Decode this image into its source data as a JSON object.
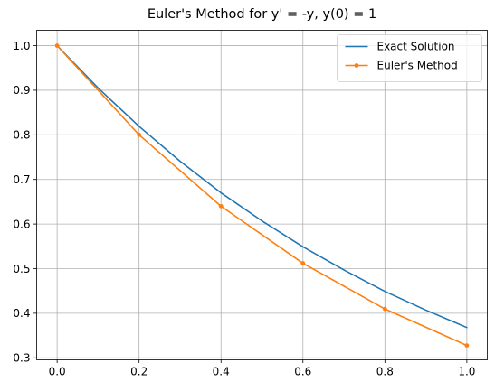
{
  "chart_data": {
    "type": "line",
    "title": "Euler's Method for y' = -y, y(0) = 1",
    "xlabel": "",
    "ylabel": "",
    "xlim": [
      -0.05,
      1.05
    ],
    "ylim": [
      0.2955,
      1.0345
    ],
    "xticks": [
      0.0,
      0.2,
      0.4,
      0.6,
      0.8,
      1.0
    ],
    "xtick_labels": [
      "0.0",
      "0.2",
      "0.4",
      "0.6",
      "0.8",
      "1.0"
    ],
    "yticks": [
      0.3,
      0.4,
      0.5,
      0.6,
      0.7,
      0.8,
      0.9,
      1.0
    ],
    "ytick_labels": [
      "0.3",
      "0.4",
      "0.5",
      "0.6",
      "0.7",
      "0.8",
      "0.9",
      "1.0"
    ],
    "grid": true,
    "legend_position": "top-right",
    "series": [
      {
        "name": "Exact Solution",
        "color": "#1f77b4",
        "marker": "none",
        "x": [
          0.0,
          0.1,
          0.2,
          0.3,
          0.4,
          0.5,
          0.6,
          0.7,
          0.8,
          0.9,
          1.0
        ],
        "y": [
          1.0,
          0.905,
          0.819,
          0.741,
          0.67,
          0.607,
          0.549,
          0.497,
          0.449,
          0.407,
          0.368
        ]
      },
      {
        "name": "Euler's Method",
        "color": "#ff7f0e",
        "marker": "circle",
        "x": [
          0.0,
          0.2,
          0.4,
          0.6,
          0.8,
          1.0
        ],
        "y": [
          1.0,
          0.8,
          0.64,
          0.512,
          0.4096,
          0.32768
        ]
      }
    ]
  }
}
